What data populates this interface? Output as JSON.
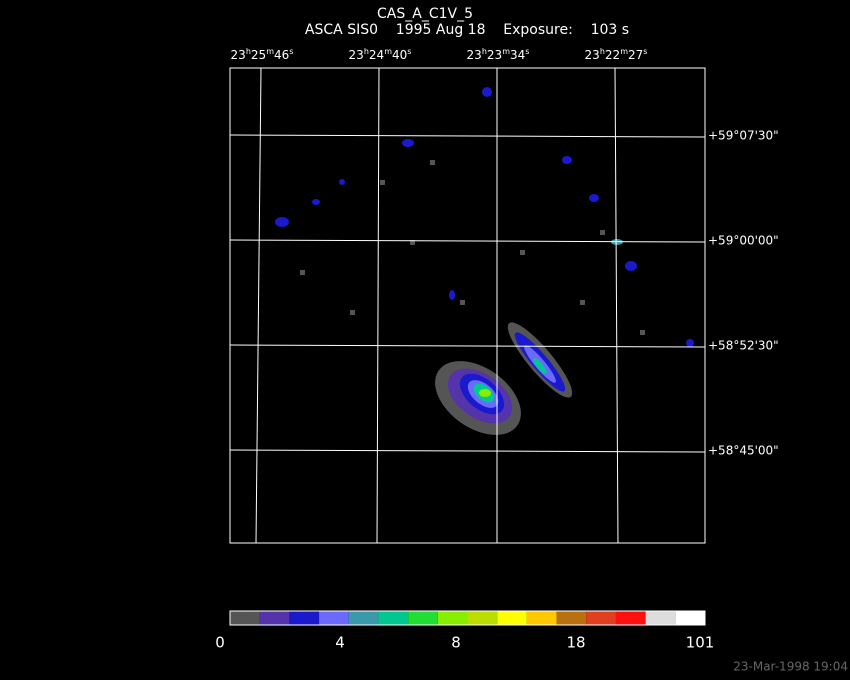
{
  "header": {
    "title": "CAS_A_C1V_5",
    "subtitle": "ASCA SIS0    1995 Aug 18    Exposure:    103 s"
  },
  "ra_units": [
    "h",
    "m",
    "s"
  ],
  "ra_labels": [
    {
      "hours": "23",
      "minutes": "25",
      "seconds": "46"
    },
    {
      "hours": "23",
      "minutes": "24",
      "seconds": "40"
    },
    {
      "hours": "23",
      "minutes": "23",
      "seconds": "34"
    },
    {
      "hours": "23",
      "minutes": "22",
      "seconds": "27"
    }
  ],
  "dec_labels": [
    "+59°07'30\"",
    "+59°00'00\"",
    "+58°52'30\"",
    "+58°45'00\""
  ],
  "colorbar": {
    "colors": [
      "#555555",
      "#5533aa",
      "#1a1acc",
      "#6a6aff",
      "#3a9aaa",
      "#00c890",
      "#22dd33",
      "#88ee00",
      "#bbdd00",
      "#ffff00",
      "#ffc800",
      "#b87010",
      "#e04020",
      "#ff1010",
      "#dddddd",
      "#ffffff"
    ],
    "labels": [
      "0",
      "4",
      "8",
      "18",
      "101"
    ]
  },
  "timestamp": "23-Mar-1998 19:04"
}
